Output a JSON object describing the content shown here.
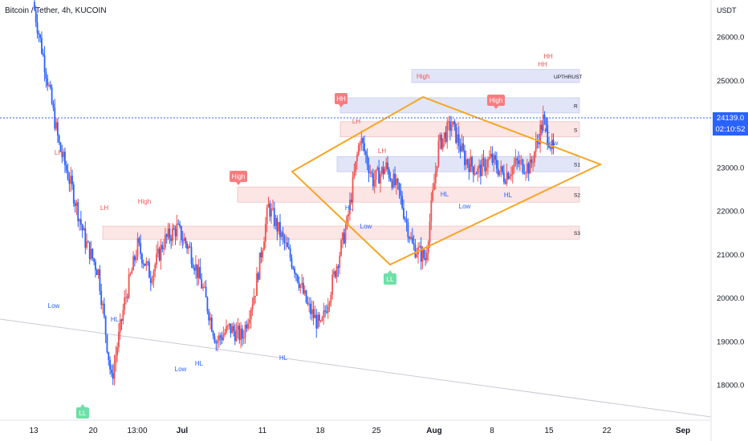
{
  "header": {
    "symbol_line": "Bitcoin / Tether, 4h, KUCOIN",
    "currency": "USDT"
  },
  "price_label": {
    "value": "24139.0",
    "countdown": "02:10:52"
  },
  "colors": {
    "up": "#ef5350",
    "down": "#2962ff",
    "lh": "#ef5350",
    "hl": "#2962ff",
    "triangle": "#f5a623",
    "zone_red": "rgba(242,160,160,0.28)",
    "zone_blue": "rgba(160,170,230,0.30)",
    "badge_red": "#f77c80",
    "badge_green": "#6ee0a7",
    "current_line": "#2962ff"
  },
  "chart_data": {
    "type": "candlestick",
    "y_axis": {
      "min": 17200,
      "max": 26700,
      "ticks": [
        "26000.0",
        "25000.0",
        "24000.0",
        "23000.0",
        "22000.0",
        "21000.0",
        "20000.0",
        "19000.0",
        "18000.0"
      ]
    },
    "x_axis": {
      "ticks": [
        "13",
        "20",
        "13:00",
        "Jul",
        "11",
        "18",
        "25",
        "Aug",
        "8",
        "15",
        "22",
        "Sep"
      ]
    },
    "current_price": 24139.0,
    "price_path": [
      {
        "d": 0,
        "p": 26800
      },
      {
        "d": 1,
        "p": 25200
      },
      {
        "d": 2,
        "p": 23500
      },
      {
        "d": 3,
        "p": 22500
      },
      {
        "d": 4,
        "p": 21300
      },
      {
        "d": 5,
        "p": 20600
      },
      {
        "d": 6,
        "p": 18100
      },
      {
        "d": 7,
        "p": 19900
      },
      {
        "d": 8,
        "p": 21200
      },
      {
        "d": 9,
        "p": 20500
      },
      {
        "d": 10,
        "p": 21300
      },
      {
        "d": 11,
        "p": 21600
      },
      {
        "d": 12,
        "p": 21100
      },
      {
        "d": 13,
        "p": 20200
      },
      {
        "d": 14,
        "p": 19000
      },
      {
        "d": 15,
        "p": 19300
      },
      {
        "d": 16,
        "p": 19100
      },
      {
        "d": 17,
        "p": 20200
      },
      {
        "d": 18,
        "p": 22100
      },
      {
        "d": 19,
        "p": 21400
      },
      {
        "d": 20,
        "p": 20700
      },
      {
        "d": 21,
        "p": 19800
      },
      {
        "d": 22,
        "p": 19300
      },
      {
        "d": 23,
        "p": 20500
      },
      {
        "d": 24,
        "p": 21700
      },
      {
        "d": 25,
        "p": 23700
      },
      {
        "d": 26,
        "p": 22700
      },
      {
        "d": 27,
        "p": 23000
      },
      {
        "d": 28,
        "p": 22400
      },
      {
        "d": 29,
        "p": 21200
      },
      {
        "d": 30,
        "p": 20900
      },
      {
        "d": 31,
        "p": 23500
      },
      {
        "d": 32,
        "p": 24000
      },
      {
        "d": 33,
        "p": 23200
      },
      {
        "d": 34,
        "p": 22900
      },
      {
        "d": 35,
        "p": 23200
      },
      {
        "d": 36,
        "p": 22800
      },
      {
        "d": 37,
        "p": 23100
      },
      {
        "d": 38,
        "p": 23000
      },
      {
        "d": 39,
        "p": 24100
      },
      {
        "d": 40,
        "p": 23100
      },
      {
        "d": 41,
        "p": 24500
      },
      {
        "d": 42,
        "p": 24200
      },
      {
        "d": 43,
        "p": 24800
      },
      {
        "d": 44,
        "p": 24139
      }
    ],
    "zones": [
      {
        "label": "S3",
        "from": 21350,
        "to": 21650,
        "style": "red"
      },
      {
        "label": "S2",
        "from": 22200,
        "to": 22550,
        "style": "red"
      },
      {
        "label": "S1",
        "from": 22900,
        "to": 23250,
        "style": "blue"
      },
      {
        "label": "S",
        "from": 23700,
        "to": 24050,
        "style": "red"
      },
      {
        "label": "R",
        "from": 24250,
        "to": 24600,
        "style": "blue"
      },
      {
        "label": "UPTHRUST",
        "from": 24950,
        "to": 25250,
        "style": "blue",
        "text": "High"
      }
    ],
    "annotations": [
      {
        "text": "LH",
        "type": "lh",
        "d": 1.2,
        "p": 23300
      },
      {
        "text": "Low",
        "type": "hl",
        "d": 1.0,
        "p": 19850
      },
      {
        "text": "LH",
        "type": "lh",
        "d": 3.6,
        "p": 22000
      },
      {
        "text": "High",
        "type": "lh",
        "d": 5.4,
        "p": 22150
      },
      {
        "text": "HL",
        "type": "hl",
        "d": 4.2,
        "p": 19300
      },
      {
        "text": "LH",
        "type": "lh",
        "d": 7.0,
        "p": 21150
      },
      {
        "text": "Low",
        "type": "hl",
        "d": 6.8,
        "p": 18600
      },
      {
        "text": "HL",
        "type": "hl",
        "d": 7.5,
        "p": 18850
      },
      {
        "text": "HL",
        "type": "hl",
        "d": 10.7,
        "p": 18950
      },
      {
        "text": "HL",
        "type": "hl",
        "d": 13.1,
        "p": 22100
      },
      {
        "text": "LH",
        "type": "lh",
        "d": 13.5,
        "p": 24050
      },
      {
        "text": "Low",
        "type": "hl",
        "d": 13.9,
        "p": 21600
      },
      {
        "text": "LH",
        "type": "lh",
        "d": 14.5,
        "p": 23500
      },
      {
        "text": "LH",
        "type": "lh",
        "d": 17.3,
        "p": 23950
      },
      {
        "text": "HL",
        "type": "hl",
        "d": 16.8,
        "p": 22550
      },
      {
        "text": "Low",
        "type": "hl",
        "d": 17.6,
        "p": 22100
      },
      {
        "text": "HL",
        "type": "hl",
        "d": 19.3,
        "p": 22550
      },
      {
        "text": "HL",
        "type": "hl",
        "d": 20.8,
        "p": 23900
      },
      {
        "text": "Low",
        "type": "hl",
        "d": 21.0,
        "p": 23620
      },
      {
        "text": "HH",
        "type": "lh",
        "d": 20.9,
        "p": 25370
      },
      {
        "text": "HH",
        "type": "lh",
        "d": 21.2,
        "p": 25560
      }
    ],
    "badges": [
      {
        "text": "LL",
        "color": "green",
        "d": 2.8,
        "p": 17520,
        "dir": "up"
      },
      {
        "text": "High",
        "color": "red",
        "d": 8.9,
        "p": 23320,
        "dir": "down"
      },
      {
        "text": "HH",
        "color": "red",
        "d": 12.8,
        "p": 24800,
        "dir": "down"
      },
      {
        "text": "LL",
        "color": "green",
        "d": 14.7,
        "p": 20350,
        "dir": "up"
      },
      {
        "text": "High",
        "color": "red",
        "d": 18.8,
        "p": 24800,
        "dir": "down"
      }
    ],
    "diamond": [
      {
        "d": 11.0,
        "p": 23100
      },
      {
        "d": 16.0,
        "p": 24700
      },
      {
        "d": 22.8,
        "p": 23000
      },
      {
        "d": 14.7,
        "p": 20800
      }
    ],
    "trendline": [
      {
        "d": 0,
        "p": 19800
      },
      {
        "d": 27.0,
        "p": 17300
      }
    ]
  }
}
